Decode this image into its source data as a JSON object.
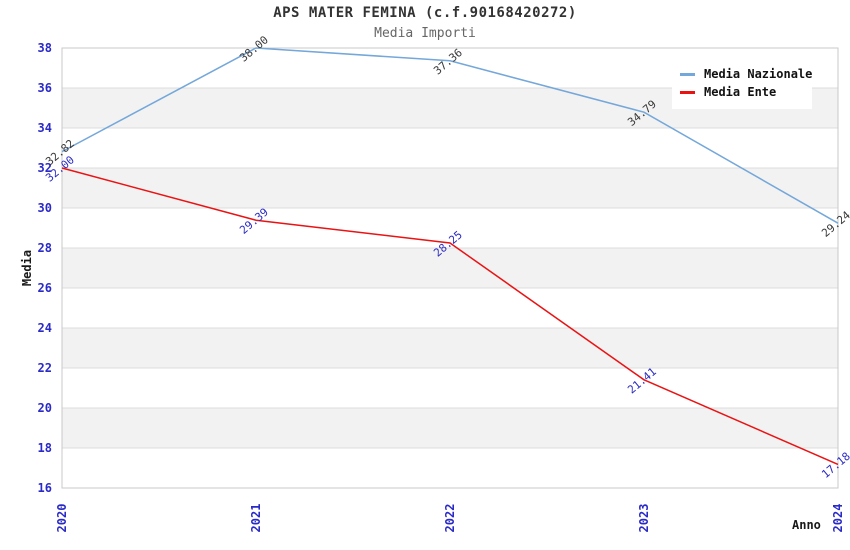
{
  "chart_data": {
    "type": "line",
    "title": "APS MATER FEMINA (c.f.90168420272)",
    "subtitle": "Media Importi",
    "xlabel": "Anno",
    "ylabel": "Media",
    "x_categories": [
      "2020",
      "2021",
      "2022",
      "2023",
      "2024"
    ],
    "yticks": [
      16,
      18,
      20,
      22,
      24,
      26,
      28,
      30,
      32,
      34,
      36,
      38
    ],
    "ylim": [
      16,
      38
    ],
    "grid": "alternating-horizontal-bands",
    "legend_position": "top-right",
    "point_labels_visible": true,
    "series": [
      {
        "name": "Media Nazionale",
        "color": "#74a7da",
        "label_color": "#383838",
        "values": [
          32.82,
          38.0,
          37.36,
          34.79,
          29.24
        ]
      },
      {
        "name": "Media Ente",
        "color": "#ea1314",
        "label_color": "#2b2bc4",
        "values": [
          32.0,
          29.39,
          28.25,
          21.41,
          17.18
        ]
      }
    ],
    "colors": {
      "tick_label": "#2a2ac8",
      "band_gray": "#f2f2f2",
      "band_white": "#ffffff",
      "grid_line": "#dcdcdc",
      "plot_border": "#c8c8c8",
      "title": "#333333",
      "subtitle": "#666666"
    }
  }
}
